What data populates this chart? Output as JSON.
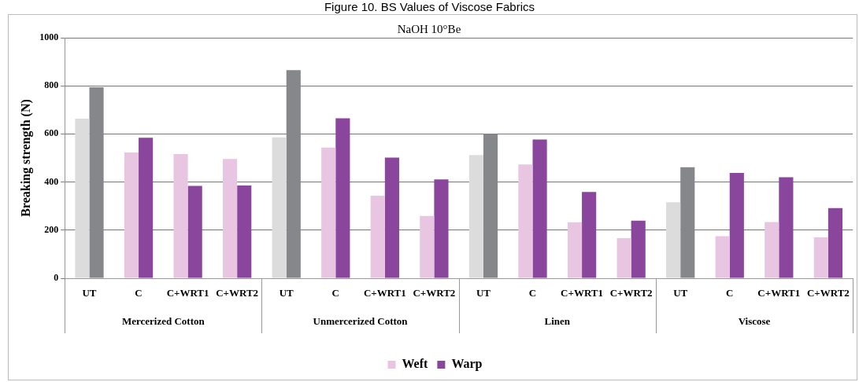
{
  "chart_data": {
    "type": "bar",
    "title": "Figure 10. BS Values of Viscose Fabrics",
    "subtitle": "NaOH 10°Be",
    "ylabel": "Breaking strength (N)",
    "categories": [
      "UT",
      "C",
      "C+WRT1",
      "C+WRT2",
      "UT",
      "C",
      "C+WRT1",
      "C+WRT2",
      "UT",
      "C",
      "C+WRT1",
      "C+WRT2",
      "UT",
      "C",
      "C+WRT1",
      "C+WRT2"
    ],
    "annotations": [
      "Mercerized Cotton",
      "Unmercerized Cotton",
      "Linen",
      "Viscose"
    ],
    "series": [
      {
        "name": "Weft",
        "color": "#e8c6e2",
        "colors": [
          "#dcdcdc",
          "#e8c6e2",
          "#e8c6e2",
          "#e8c6e2",
          "#dcdcdc",
          "#e8c6e2",
          "#e8c6e2",
          "#e8c6e2",
          "#dcdcdc",
          "#e8c6e2",
          "#e8c6e2",
          "#e8c6e2",
          "#dcdcdc",
          "#e8c6e2",
          "#e8c6e2",
          "#e8c6e2"
        ],
        "values": [
          663,
          523,
          516,
          496,
          586,
          543,
          343,
          259,
          512,
          473,
          233,
          167,
          316,
          175,
          234,
          170
        ]
      },
      {
        "name": "Warp",
        "color": "#8a469c",
        "colors": [
          "#86878b",
          "#8a469c",
          "#8a469c",
          "#8a469c",
          "#86878b",
          "#8a469c",
          "#8a469c",
          "#8a469c",
          "#86878b",
          "#8a469c",
          "#8a469c",
          "#8a469c",
          "#86878b",
          "#8a469c",
          "#8a469c",
          "#8a469c"
        ],
        "values": [
          794,
          584,
          384,
          386,
          865,
          665,
          502,
          411,
          600,
          577,
          359,
          239,
          462,
          438,
          420,
          292
        ]
      }
    ],
    "ylim": [
      0,
      1000
    ],
    "yticks": [
      0,
      200,
      400,
      600,
      800,
      1000
    ],
    "grid": "y",
    "legend": "bottom"
  }
}
